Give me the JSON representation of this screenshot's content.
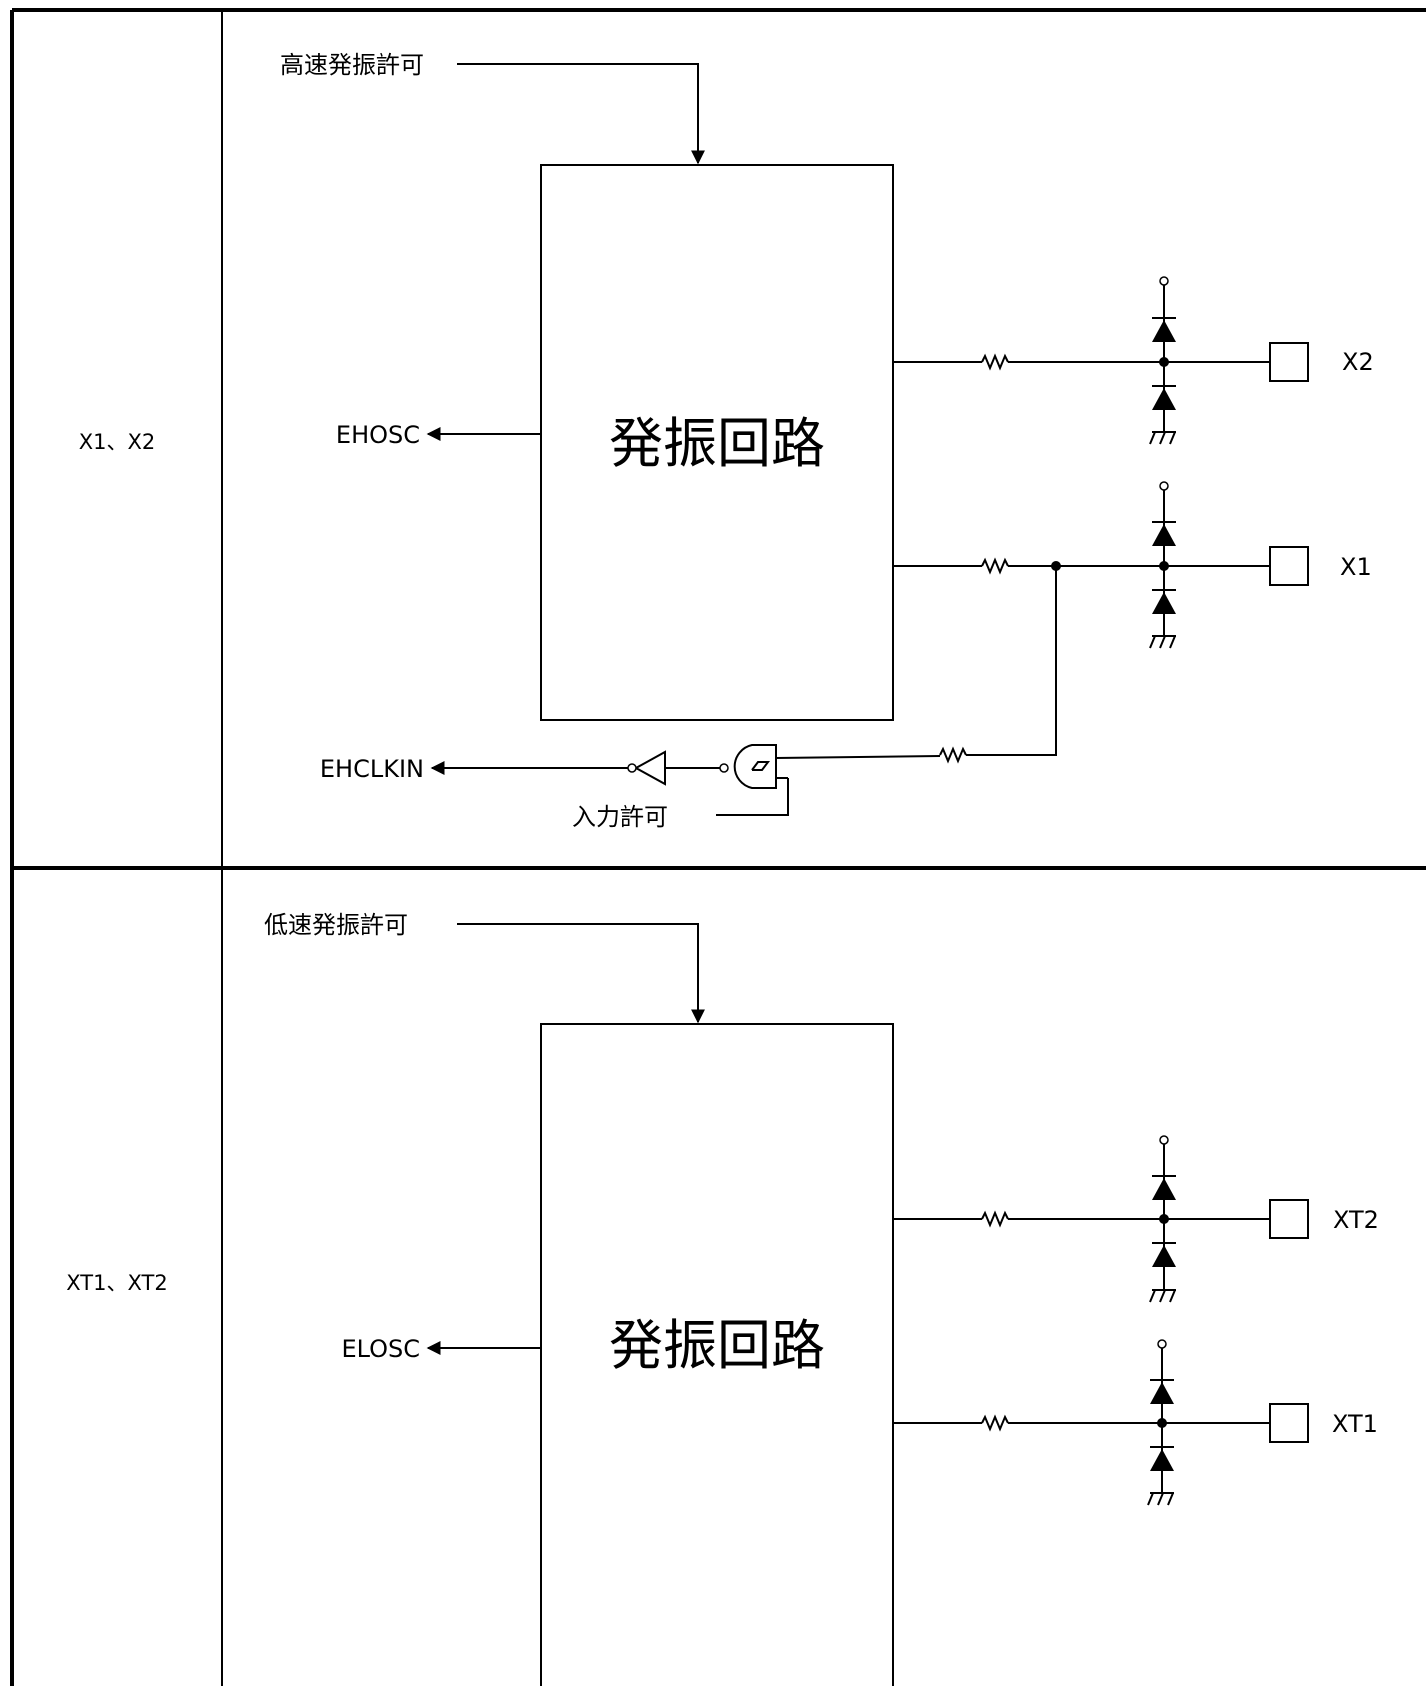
{
  "rows": [
    {
      "row_label": "X1、X2",
      "enable_label": "高速発振許可",
      "block_label": "発振回路",
      "output_label": "EHOSC",
      "pins": [
        "X2",
        "X1"
      ],
      "clkin_label": "EHCLKIN",
      "input_enable_label": "入力許可"
    },
    {
      "row_label": "XT1、XT2",
      "enable_label": "低速発振許可",
      "block_label": "発振回路",
      "output_label": "ELOSC",
      "pins": [
        "XT2",
        "XT1"
      ]
    }
  ]
}
